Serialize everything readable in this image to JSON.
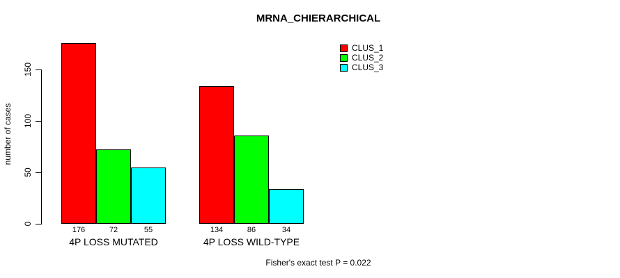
{
  "chart_data": {
    "type": "bar",
    "title": "MRNA_CHIERARCHICAL",
    "xlabel": "",
    "ylabel": "number of cases",
    "categories": [
      "4P LOSS MUTATED",
      "4P LOSS WILD-TYPE"
    ],
    "series": [
      {
        "name": "CLUS_1",
        "color": "#ff0000",
        "values": [
          176,
          134
        ]
      },
      {
        "name": "CLUS_2",
        "color": "#00ff00",
        "values": [
          72,
          86
        ]
      },
      {
        "name": "CLUS_3",
        "color": "#00ffff",
        "values": [
          55,
          34
        ]
      }
    ],
    "value_labels_shown": true,
    "yticks": [
      0,
      50,
      100,
      150
    ],
    "ylim": [
      0,
      180
    ],
    "grid": false,
    "legend_position": "top-right",
    "annotation": "Fisher's exact test P = 0.022"
  },
  "colors": {
    "axis": "#000000",
    "text": "#000000",
    "background": "#ffffff"
  }
}
